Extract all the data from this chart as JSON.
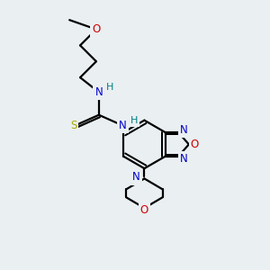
{
  "bg_color": "#eaeff2",
  "bond_color": "#000000",
  "bond_width": 1.6,
  "atom_colors": {
    "C": "#000000",
    "N": "#0000cc",
    "O": "#cc0000",
    "S": "#aaaa00",
    "H_label": "#008080"
  },
  "font_size_atom": 8.5
}
